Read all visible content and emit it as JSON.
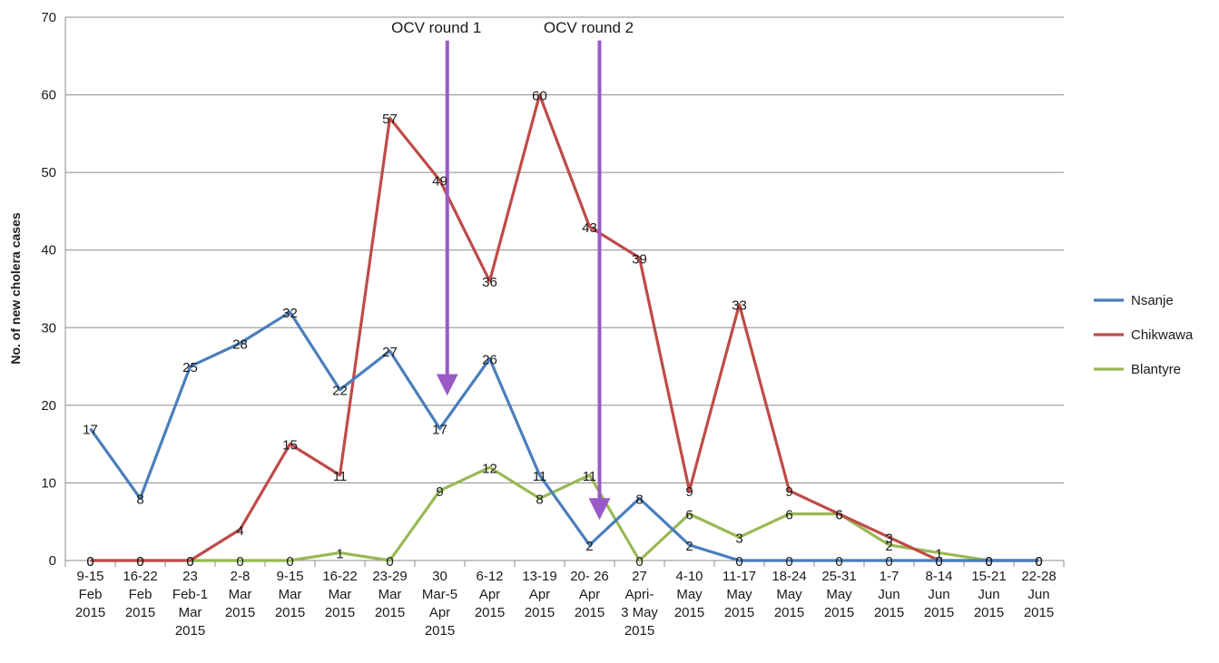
{
  "chart_data": {
    "type": "line",
    "ylabel": "No. of new cholera cases",
    "ylim": [
      0,
      70
    ],
    "yticks": [
      0,
      10,
      20,
      30,
      40,
      50,
      60,
      70
    ],
    "grid": true,
    "legend_position": "right",
    "categories": [
      [
        "9-15",
        "Feb",
        "2015"
      ],
      [
        "16-22",
        "Feb",
        "2015"
      ],
      [
        "23",
        "Feb-1",
        "Mar",
        "2015"
      ],
      [
        "2-8",
        "Mar",
        "2015"
      ],
      [
        "9-15",
        "Mar",
        "2015"
      ],
      [
        "16-22",
        "Mar",
        "2015"
      ],
      [
        "23-29",
        "Mar",
        "2015"
      ],
      [
        "30",
        "Mar-5",
        "Apr",
        "2015"
      ],
      [
        "6-12",
        "Apr",
        "2015"
      ],
      [
        "13-19",
        "Apr",
        "2015"
      ],
      [
        "20- 26",
        "Apr",
        "2015"
      ],
      [
        "27",
        "Apri-",
        "3 May",
        "2015"
      ],
      [
        "4-10",
        "May",
        "2015"
      ],
      [
        "11-17",
        "May",
        "2015"
      ],
      [
        "18-24",
        "May",
        "2015"
      ],
      [
        "25-31",
        "May",
        "2015"
      ],
      [
        "1-7",
        "Jun",
        "2015"
      ],
      [
        "8-14",
        "Jun",
        "2015"
      ],
      [
        "15-21",
        "Jun",
        "2015"
      ],
      [
        "22-28",
        "Jun",
        "2015"
      ]
    ],
    "series": [
      {
        "name": "Nsanje",
        "color": "#4a7ebb",
        "values": [
          17,
          8,
          25,
          28,
          32,
          22,
          27,
          17,
          26,
          11,
          2,
          8,
          2,
          0,
          0,
          0,
          0,
          0,
          0,
          0
        ],
        "labels": [
          "17",
          "8",
          "25",
          "28",
          "32",
          "22",
          "27",
          "17",
          "26",
          "11",
          "2",
          "8",
          "2",
          "0",
          "0",
          "0",
          "0",
          "0",
          "0",
          "0"
        ]
      },
      {
        "name": "Chikwawa",
        "color": "#be4b48",
        "values": [
          0,
          0,
          0,
          4,
          15,
          11,
          57,
          49,
          36,
          60,
          43,
          39,
          9,
          33,
          9,
          6,
          3,
          0,
          0,
          0
        ],
        "labels": [
          "0",
          "0",
          "0",
          "4",
          "15",
          "11",
          "57",
          "49",
          "36",
          "60",
          "43",
          "39",
          "9",
          "33",
          "9",
          "6",
          "3",
          "0",
          "0",
          "0"
        ]
      },
      {
        "name": "Blantyre",
        "color": "#98b954",
        "values": [
          0,
          0,
          0,
          0,
          0,
          1,
          0,
          9,
          12,
          8,
          11,
          0,
          6,
          3,
          6,
          6,
          2,
          1,
          0,
          0
        ],
        "labels": [
          "0",
          "0",
          "0",
          "0",
          "0",
          "1",
          "0",
          "9",
          "12",
          "8",
          "11",
          "0",
          "6",
          "3",
          "6",
          "6",
          "2",
          "1",
          "0",
          "0"
        ]
      }
    ],
    "annotations": [
      {
        "text": "OCV round 1",
        "category_index": 7,
        "arrow_from": 67,
        "arrow_to": 21,
        "color": "#9b59c8"
      },
      {
        "text": "OCV round 2",
        "category_index": 10,
        "arrow_from": 67,
        "arrow_to": 5,
        "color": "#9b59c8"
      }
    ]
  }
}
